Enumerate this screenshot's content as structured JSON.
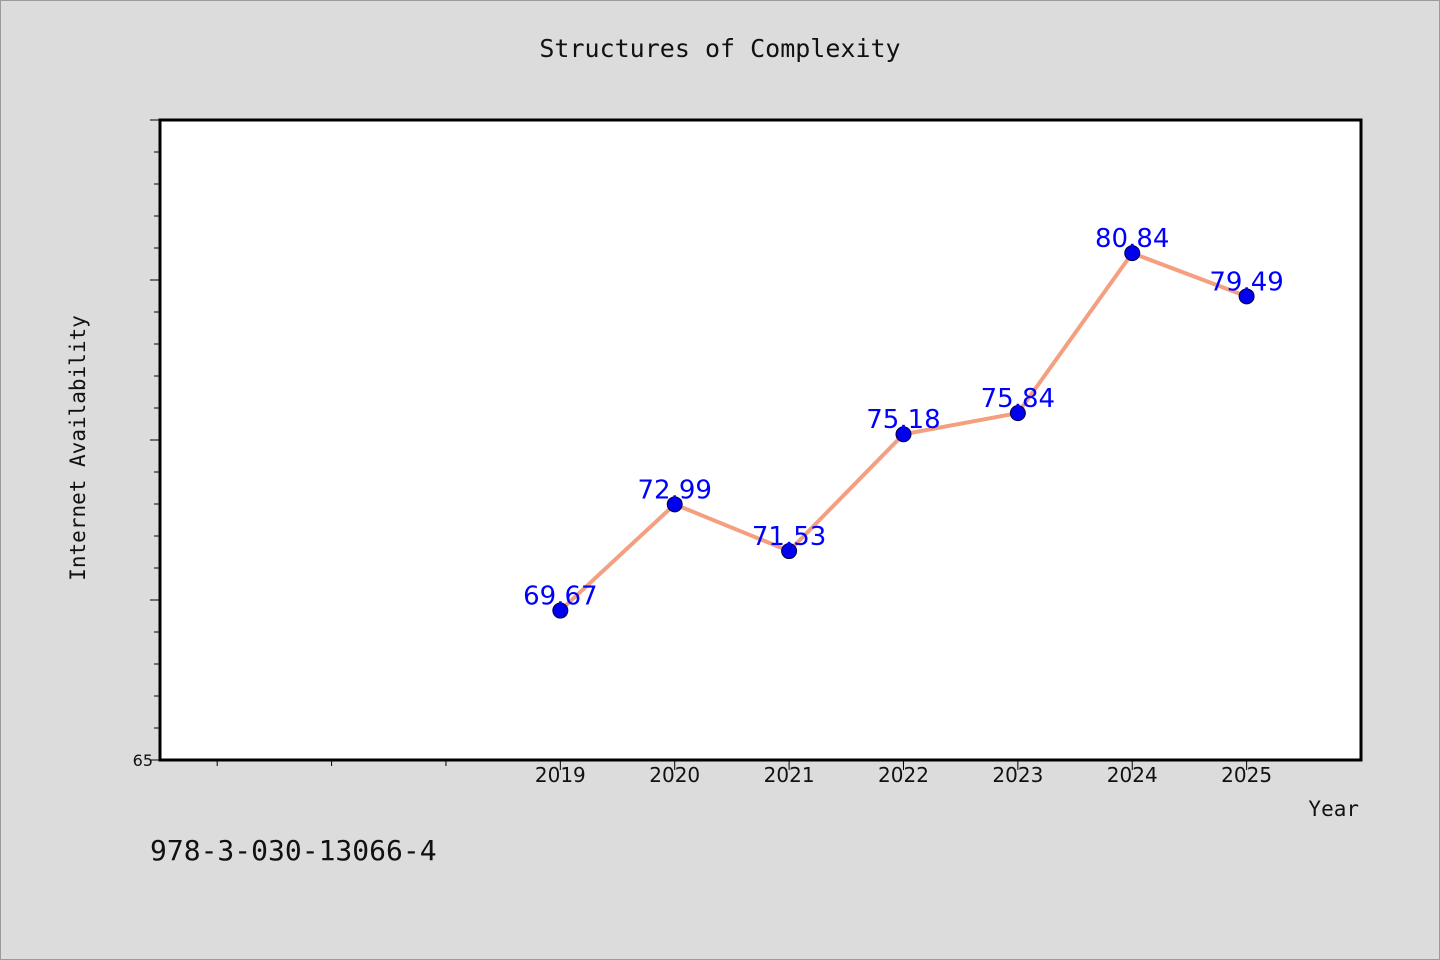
{
  "title": "Structures of Complexity",
  "footer_code": "978-3-030-13066-4",
  "chart_data": {
    "type": "line",
    "title": "Structures of Complexity",
    "xlabel": "Year",
    "ylabel": "Internet Availability",
    "x": [
      "2019",
      "2020",
      "2021",
      "2022",
      "2023",
      "2024",
      "2025"
    ],
    "x_range": [
      2015.5,
      2026
    ],
    "y": [
      69.67,
      72.99,
      71.53,
      75.18,
      75.84,
      80.84,
      79.49
    ],
    "data_labels": [
      "69.67",
      "72.99",
      "71.53",
      "75.18",
      "75.84",
      "80.84",
      "79.49"
    ],
    "ylim": [
      65,
      85
    ],
    "y_tick_labels": [
      "65"
    ],
    "y_major_step": 5,
    "y_minor_step": 1,
    "x_minor_ticks": [
      2016,
      2017,
      2018
    ],
    "grid": false,
    "legend": "none",
    "line_color": "#f4a080",
    "marker_color": "#0000ee",
    "label_color": "#0000ff"
  }
}
